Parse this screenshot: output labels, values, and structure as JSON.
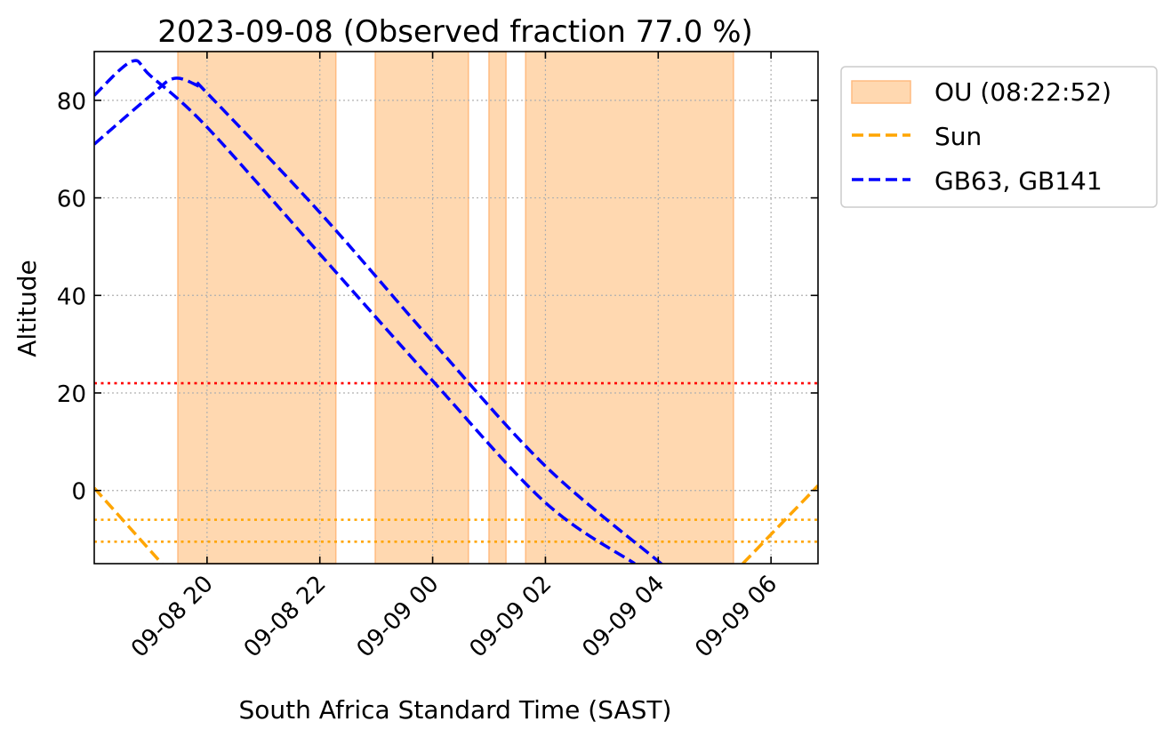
{
  "chart_data": {
    "type": "line",
    "title": "2023-09-08 (Observed fraction 77.0 %)",
    "xlabel": "South Africa Standard Time (SAST)",
    "ylabel": "Altitude",
    "x_axis": "datetime",
    "xlim": [
      "2023-09-08 18:00",
      "2023-09-09 06:50"
    ],
    "ylim": [
      -15,
      90
    ],
    "grid": true,
    "grid_style": "dotted",
    "legend_placement": "outside top-right",
    "x_ticks": [
      "2023-09-08 20:00",
      "2023-09-08 22:00",
      "2023-09-09 00:00",
      "2023-09-09 02:00",
      "2023-09-09 04:00",
      "2023-09-09 06:00"
    ],
    "x_tick_labels": [
      "09-08 20",
      "09-08 22",
      "09-09 00",
      "09-09 02",
      "09-09 04",
      "09-09 06"
    ],
    "y_ticks": [
      0,
      20,
      40,
      60,
      80
    ],
    "y_tick_labels": [
      "0",
      "20",
      "40",
      "60",
      "80"
    ],
    "shaded_intervals": {
      "name": "OU (08:22:52)",
      "color": "#ffd8b0",
      "edge_color": "#ffbb80",
      "intervals": [
        [
          "2023-09-08 19:29",
          "2023-09-08 22:17"
        ],
        [
          "2023-09-08 22:59",
          "2023-09-09 00:38"
        ],
        [
          "2023-09-09 01:00",
          "2023-09-09 01:18"
        ],
        [
          "2023-09-09 01:39",
          "2023-09-09 05:20"
        ]
      ]
    },
    "series": [
      {
        "name": "Sun",
        "color": "#ffa500",
        "style": "dashed",
        "segments": [
          [
            [
              "2023-09-08 18:00",
              0.5
            ],
            [
              "2023-09-08 19:12",
              -15
            ]
          ],
          [
            [
              "2023-09-09 05:30",
              -15
            ],
            [
              "2023-09-09 06:50",
              1
            ]
          ]
        ]
      },
      {
        "name": "GB63",
        "color": "#0000ff",
        "style": "dashed",
        "points": [
          [
            "2023-09-08 18:00",
            81
          ],
          [
            "2023-09-08 18:40",
            88
          ],
          [
            "2023-09-08 19:00",
            85
          ],
          [
            "2023-09-08 20:00",
            74.5
          ],
          [
            "2023-09-08 22:00",
            48.5
          ],
          [
            "2023-09-09 00:00",
            22.5
          ],
          [
            "2023-09-09 02:00",
            -2.5
          ],
          [
            "2023-09-09 03:35",
            -15
          ]
        ]
      },
      {
        "name": "GB141",
        "color": "#0000ff",
        "style": "dashed",
        "points": [
          [
            "2023-09-08 18:00",
            71
          ],
          [
            "2023-09-08 19:00",
            81
          ],
          [
            "2023-09-08 19:25",
            84.5
          ],
          [
            "2023-09-08 19:50",
            83
          ],
          [
            "2023-09-08 20:00",
            81.5
          ],
          [
            "2023-09-08 22:00",
            57
          ],
          [
            "2023-09-09 00:00",
            30.5
          ],
          [
            "2023-09-09 02:00",
            5
          ],
          [
            "2023-09-09 04:00",
            -14.5
          ],
          [
            "2023-09-09 04:03",
            -15
          ]
        ]
      }
    ],
    "hlines": [
      {
        "y": 22,
        "color": "#ff0000",
        "style": "dotted"
      },
      {
        "y": -6,
        "color": "#ffa500",
        "style": "dotted"
      },
      {
        "y": -10.5,
        "color": "#ffa500",
        "style": "dotted"
      }
    ],
    "legend": [
      {
        "label": "OU (08:22:52)",
        "kind": "patch",
        "color": "#ffd8b0",
        "edge_color": "#ffbb80"
      },
      {
        "label": "Sun",
        "kind": "line",
        "color": "#ffa500",
        "style": "dashed"
      },
      {
        "label": "GB63, GB141",
        "kind": "line",
        "color": "#0000ff",
        "style": "dashed"
      }
    ]
  }
}
